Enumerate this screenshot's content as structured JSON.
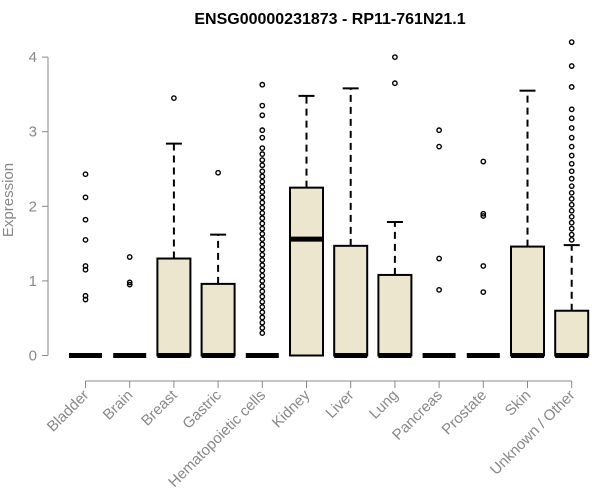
{
  "chart_data": {
    "type": "boxplot",
    "title": "ENSG00000231873 - RP11-761N21.1",
    "xlabel": "",
    "ylabel": "Expression",
    "ylim": [
      0,
      4.2
    ],
    "yticks": [
      0,
      1,
      2,
      3,
      4
    ],
    "grid": false,
    "colors": {
      "box_fill": "#ede6cf",
      "box_stroke": "#000000",
      "axis_text": "#888888"
    },
    "categories": [
      "Bladder",
      "Brain",
      "Breast",
      "Gastric",
      "Hematopoietic cells",
      "Kidney",
      "Liver",
      "Lung",
      "Pancreas",
      "Prostate",
      "Skin",
      "Unknown / Other"
    ],
    "boxes": [
      {
        "category": "Bladder",
        "q1": 0,
        "median": 0,
        "q3": 0,
        "whisker_low": 0,
        "whisker_high": 0,
        "outliers": [
          2.43,
          2.12,
          1.82,
          1.55,
          1.2,
          1.15,
          0.8,
          0.75
        ]
      },
      {
        "category": "Brain",
        "q1": 0,
        "median": 0,
        "q3": 0,
        "whisker_low": 0,
        "whisker_high": 0,
        "outliers": [
          1.32,
          0.98,
          0.95
        ]
      },
      {
        "category": "Breast",
        "q1": 0,
        "median": 0,
        "q3": 1.3,
        "whisker_low": 0,
        "whisker_high": 2.84,
        "outliers": [
          3.45
        ]
      },
      {
        "category": "Gastric",
        "q1": 0,
        "median": 0,
        "q3": 0.96,
        "whisker_low": 0,
        "whisker_high": 1.62,
        "outliers": [
          2.45
        ]
      },
      {
        "category": "Hematopoietic cells",
        "q1": 0,
        "median": 0,
        "q3": 0,
        "whisker_low": 0,
        "whisker_high": 0,
        "outliers": [
          3.63,
          3.35,
          3.22,
          3.02,
          2.92,
          2.78,
          2.7,
          2.62,
          2.55,
          2.47,
          2.4,
          2.33,
          2.26,
          2.19,
          2.12,
          2.05,
          1.98,
          1.91,
          1.84,
          1.77,
          1.7,
          1.63,
          1.56,
          1.49,
          1.42,
          1.35,
          1.28,
          1.21,
          1.14,
          1.07,
          1.0,
          0.93,
          0.86,
          0.79,
          0.72,
          0.65,
          0.58,
          0.51,
          0.44,
          0.37,
          0.3
        ]
      },
      {
        "category": "Kidney",
        "q1": 0,
        "median": 1.56,
        "q3": 2.25,
        "whisker_low": 0,
        "whisker_high": 3.48,
        "outliers": []
      },
      {
        "category": "Liver",
        "q1": 0,
        "median": 0,
        "q3": 1.47,
        "whisker_low": 0,
        "whisker_high": 3.58,
        "outliers": []
      },
      {
        "category": "Lung",
        "q1": 0,
        "median": 0,
        "q3": 1.08,
        "whisker_low": 0,
        "whisker_high": 1.79,
        "outliers": [
          4.0,
          3.65
        ]
      },
      {
        "category": "Pancreas",
        "q1": 0,
        "median": 0,
        "q3": 0,
        "whisker_low": 0,
        "whisker_high": 0,
        "outliers": [
          3.02,
          2.8,
          1.3,
          0.88
        ]
      },
      {
        "category": "Prostate",
        "q1": 0,
        "median": 0,
        "q3": 0,
        "whisker_low": 0,
        "whisker_high": 0,
        "outliers": [
          2.6,
          1.9,
          1.87,
          1.2,
          0.85
        ]
      },
      {
        "category": "Skin",
        "q1": 0,
        "median": 0,
        "q3": 1.46,
        "whisker_low": 0,
        "whisker_high": 3.55,
        "outliers": []
      },
      {
        "category": "Unknown / Other",
        "q1": 0,
        "median": 0,
        "q3": 0.6,
        "whisker_low": 0,
        "whisker_high": 1.48,
        "outliers": [
          4.2,
          3.88,
          3.6,
          3.3,
          3.18,
          3.05,
          2.92,
          2.8,
          2.68,
          2.57,
          2.47,
          2.37,
          2.27,
          2.18,
          2.1,
          2.02,
          1.94,
          1.86,
          1.78,
          1.7,
          1.62,
          1.55
        ]
      }
    ]
  }
}
